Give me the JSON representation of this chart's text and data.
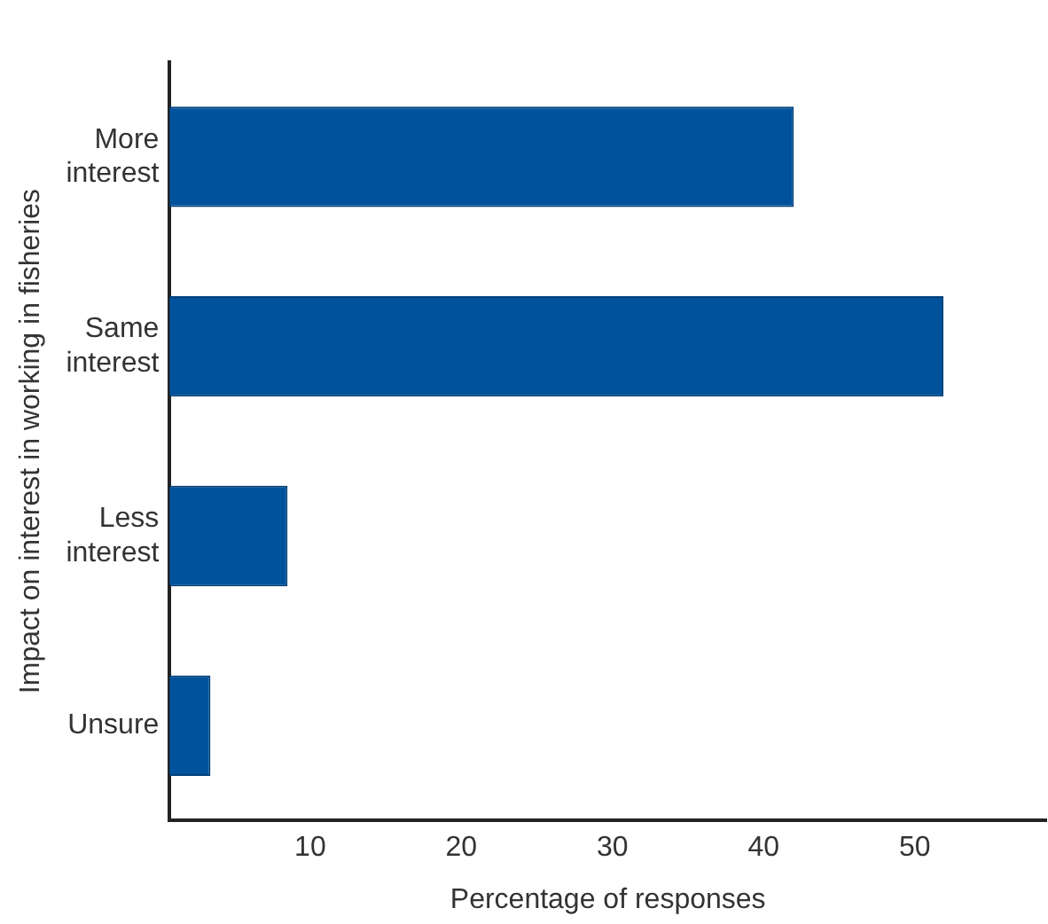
{
  "chart_data": {
    "type": "bar",
    "orientation": "horizontal",
    "xlabel": "Percentage of responses",
    "ylabel": "Impact on interest in working in fisheries",
    "categories": [
      "More interest",
      "Same interest",
      "Less interest",
      "Unsure"
    ],
    "values": [
      42.0,
      51.9,
      8.5,
      3.4
    ],
    "color": "#00529c",
    "xlim": [
      0.7,
      58.7
    ],
    "xticks": [
      10,
      20,
      30,
      40,
      50
    ],
    "grid": false,
    "legend": false
  }
}
